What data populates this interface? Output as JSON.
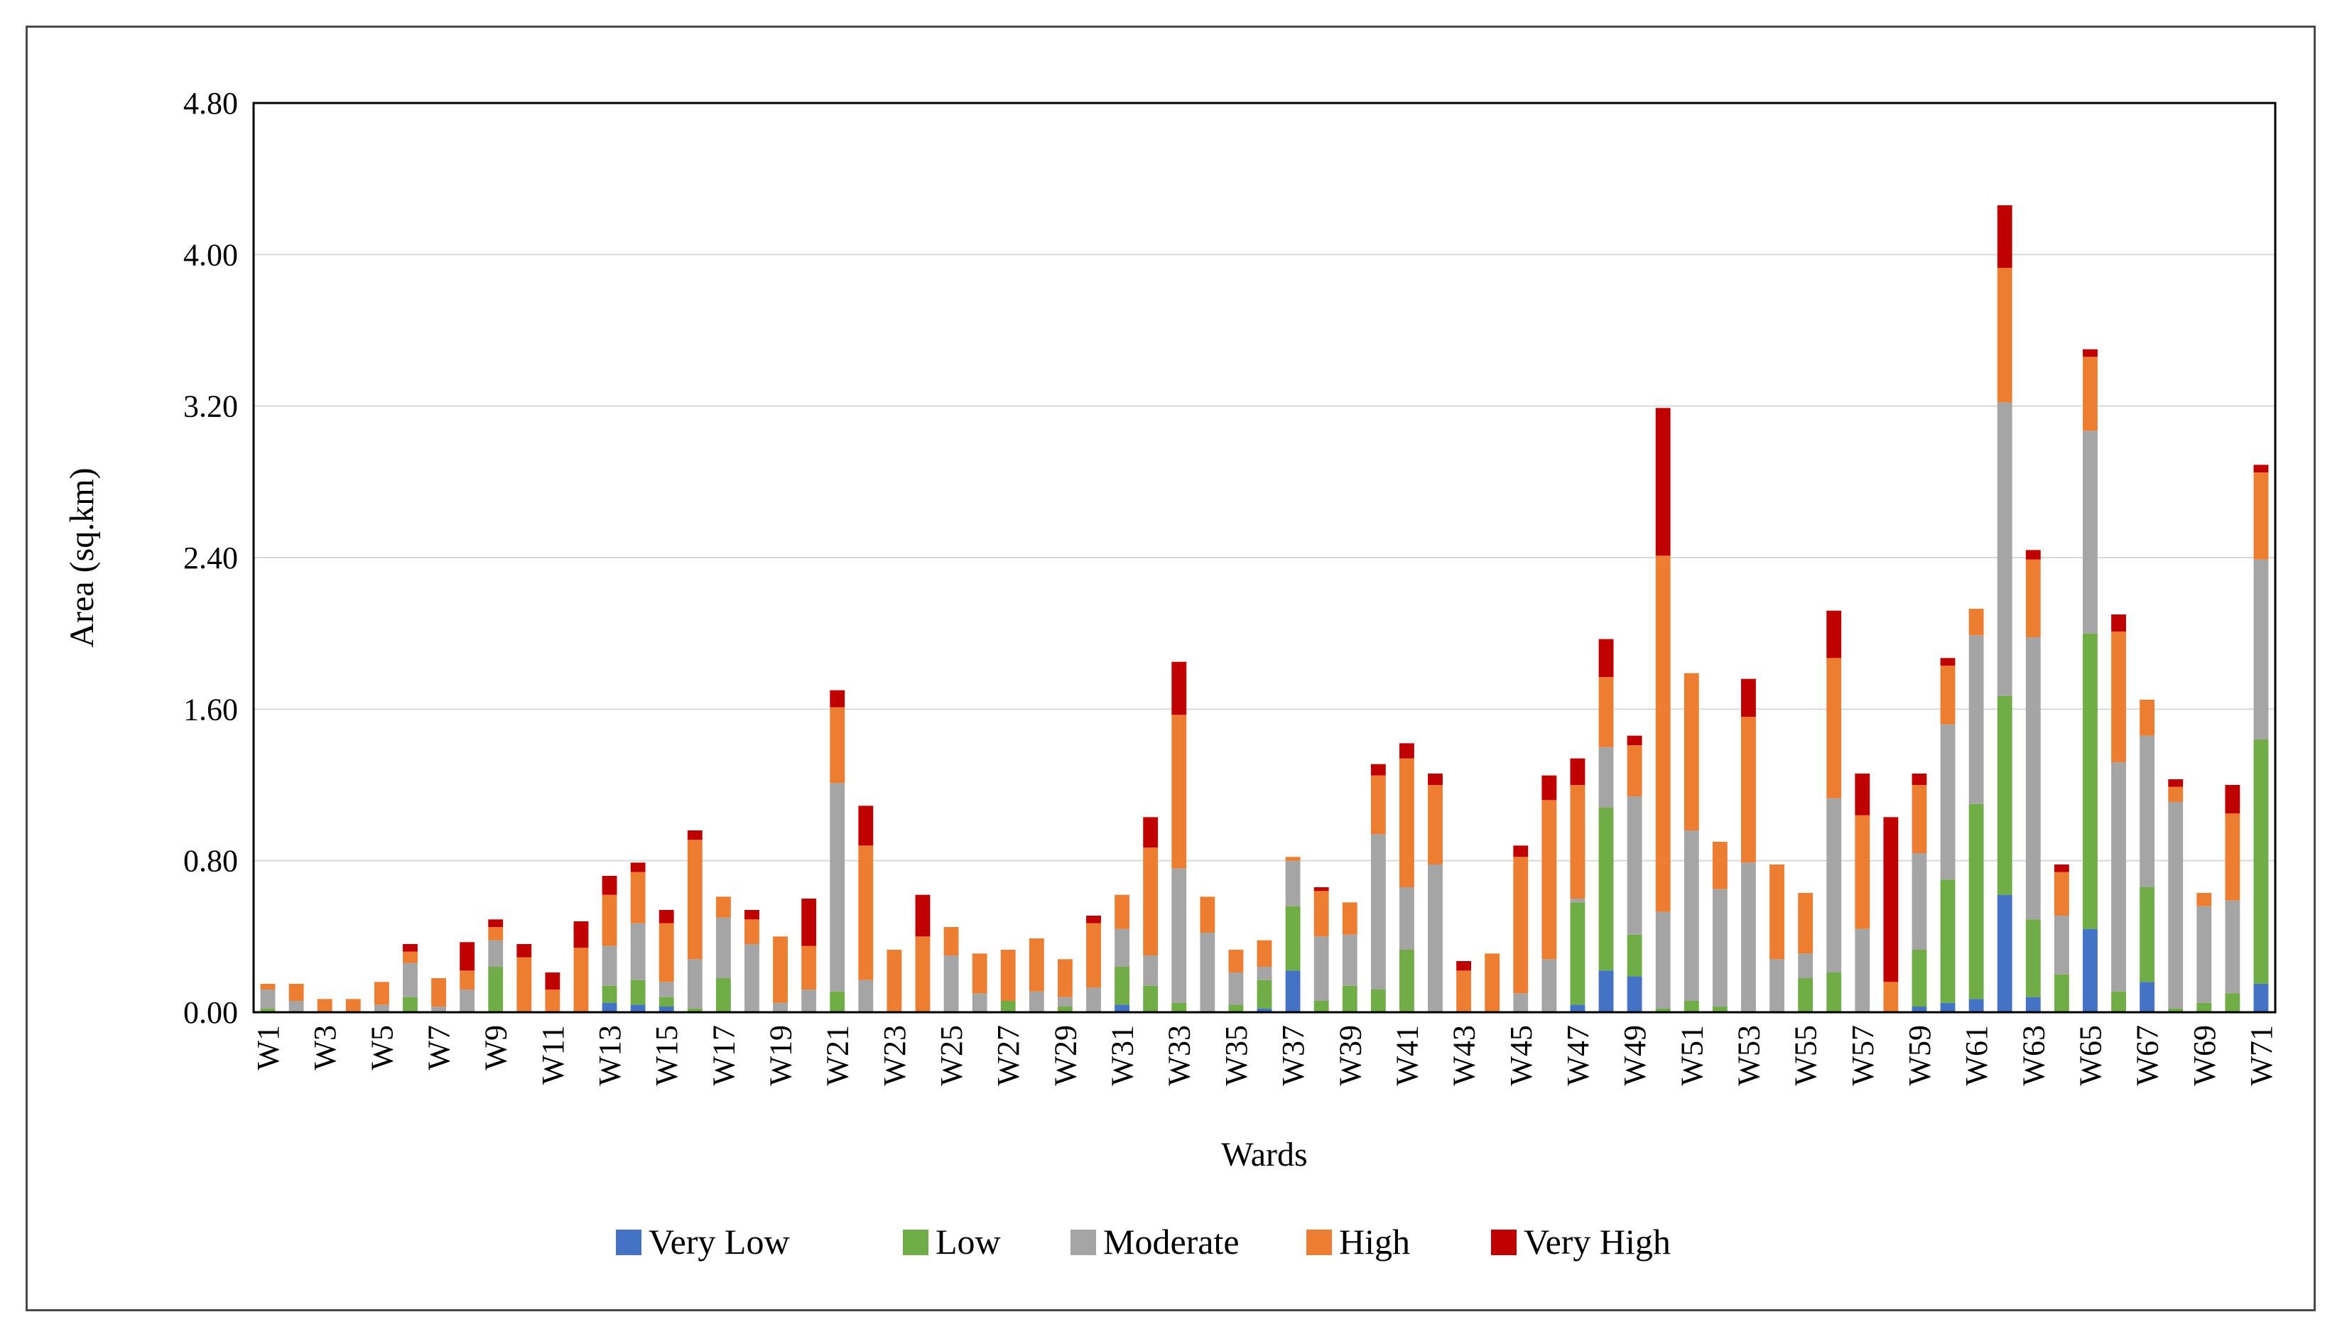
{
  "chart_data": {
    "type": "bar",
    "stacked": true,
    "title": "",
    "xlabel": "Wards",
    "ylabel": "Area (sq.km)",
    "ylim": [
      0,
      4.8
    ],
    "yticks": [
      "0.00",
      "0.80",
      "1.60",
      "2.40",
      "3.20",
      "4.00",
      "4.80"
    ],
    "grid": true,
    "legend_position": "bottom",
    "categories": [
      "W1",
      "W2",
      "W3",
      "W4",
      "W5",
      "W6",
      "W7",
      "W8",
      "W9",
      "W10",
      "W11",
      "W12",
      "W13",
      "W14",
      "W15",
      "W16",
      "W17",
      "W18",
      "W19",
      "W20",
      "W21",
      "W22",
      "W23",
      "W24",
      "W25",
      "W26",
      "W27",
      "W28",
      "W29",
      "W30",
      "W31",
      "W32",
      "W33",
      "W34",
      "W35",
      "W36",
      "W37",
      "W38",
      "W39",
      "W40",
      "W41",
      "W42",
      "W43",
      "W44",
      "W45",
      "W46",
      "W47",
      "W48",
      "W49",
      "W50",
      "W51",
      "W52",
      "W53",
      "W54",
      "W55",
      "W56",
      "W57",
      "W58",
      "W59",
      "W60",
      "W61",
      "W62",
      "W63",
      "W64",
      "W65",
      "W66",
      "W67",
      "W68",
      "W69",
      "W70",
      "W71"
    ],
    "xtick_labels_shown": [
      "W1",
      "W3",
      "W5",
      "W7",
      "W9",
      "W11",
      "W13",
      "W15",
      "W17",
      "W19",
      "W21",
      "W23",
      "W25",
      "W27",
      "W29",
      "W31",
      "W33",
      "W35",
      "W37",
      "W39",
      "W41",
      "W43",
      "W45",
      "W47",
      "W49",
      "W51",
      "W53",
      "W55",
      "W57",
      "W59",
      "W61",
      "W63",
      "W65",
      "W67",
      "W69",
      "W71"
    ],
    "series": [
      {
        "name": "Very Low",
        "color": "#4472c4",
        "values": [
          0,
          0,
          0,
          0,
          0,
          0,
          0,
          0,
          0,
          0,
          0,
          0,
          0.05,
          0.04,
          0.03,
          0,
          0,
          0,
          0,
          0,
          0,
          0,
          0,
          0,
          0,
          0,
          0,
          0,
          0,
          0,
          0.04,
          0,
          0,
          0,
          0,
          0.02,
          0.22,
          0,
          0,
          0,
          0,
          0,
          0,
          0,
          0,
          0,
          0.04,
          0.22,
          0.19,
          0,
          0,
          0,
          0,
          0,
          0,
          0,
          0,
          0,
          0.03,
          0.05,
          0.07,
          0.62,
          0.08,
          0,
          0.44,
          0,
          0.16,
          0,
          0,
          0,
          0.15
        ]
      },
      {
        "name": "Low",
        "color": "#70ad47",
        "values": [
          0.02,
          0,
          0,
          0,
          0,
          0.08,
          0,
          0,
          0.24,
          0,
          0,
          0,
          0.09,
          0.13,
          0.05,
          0.02,
          0.18,
          0,
          0,
          0,
          0.11,
          0,
          0,
          0,
          0,
          0,
          0.06,
          0,
          0.03,
          0,
          0.2,
          0.14,
          0.05,
          0,
          0.04,
          0.15,
          0.34,
          0.06,
          0.14,
          0.12,
          0.33,
          0,
          0,
          0,
          0,
          0,
          0.54,
          0.86,
          0.22,
          0.02,
          0.06,
          0.03,
          0,
          0,
          0.18,
          0.21,
          0,
          0,
          0.3,
          0.65,
          1.03,
          1.05,
          0.41,
          0.2,
          1.56,
          0.11,
          0.5,
          0.02,
          0.05,
          0.1,
          1.29
        ]
      },
      {
        "name": "Moderate",
        "color": "#a5a5a5",
        "values": [
          0.1,
          0.06,
          0,
          0,
          0.04,
          0.18,
          0.03,
          0.12,
          0.14,
          0,
          0,
          0,
          0.21,
          0.3,
          0.08,
          0.26,
          0.32,
          0.36,
          0.05,
          0.12,
          1.1,
          0.17,
          0,
          0,
          0.3,
          0.1,
          0,
          0.11,
          0.05,
          0.13,
          0.2,
          0.16,
          0.71,
          0.42,
          0.17,
          0.07,
          0.24,
          0.34,
          0.27,
          0.82,
          0.33,
          0.78,
          0,
          0,
          0.1,
          0.28,
          0.02,
          0.32,
          0.73,
          0.51,
          0.9,
          0.62,
          0.79,
          0.28,
          0.13,
          0.92,
          0.44,
          0,
          0.51,
          0.82,
          0.89,
          1.55,
          1.49,
          0.31,
          1.07,
          1.21,
          0.8,
          1.09,
          0.51,
          0.49,
          0.95
        ]
      },
      {
        "name": "High",
        "color": "#ed7d31",
        "values": [
          0.03,
          0.09,
          0.07,
          0.07,
          0.12,
          0.06,
          0.15,
          0.1,
          0.07,
          0.29,
          0.12,
          0.34,
          0.27,
          0.27,
          0.31,
          0.63,
          0.11,
          0.13,
          0.35,
          0.23,
          0.4,
          0.71,
          0.33,
          0.4,
          0.15,
          0.21,
          0.27,
          0.28,
          0.2,
          0.34,
          0.18,
          0.57,
          0.81,
          0.19,
          0.12,
          0.14,
          0.02,
          0.24,
          0.17,
          0.31,
          0.68,
          0.42,
          0.22,
          0.31,
          0.72,
          0.84,
          0.6,
          0.37,
          0.27,
          1.88,
          0.83,
          0.25,
          0.77,
          0.5,
          0.32,
          0.74,
          0.6,
          0.16,
          0.36,
          0.31,
          0.14,
          0.71,
          0.41,
          0.23,
          0.39,
          0.69,
          0.19,
          0.08,
          0.07,
          0.46,
          0.46
        ]
      },
      {
        "name": "Very High",
        "color": "#c00000",
        "values": [
          0,
          0,
          0,
          0,
          0,
          0.04,
          0,
          0.15,
          0.04,
          0.07,
          0.09,
          0.14,
          0.1,
          0.05,
          0.07,
          0.05,
          0,
          0.05,
          0,
          0.25,
          0.09,
          0.21,
          0,
          0.22,
          0,
          0,
          0,
          0,
          0,
          0.04,
          0,
          0.16,
          0.28,
          0,
          0,
          0,
          0,
          0.02,
          0,
          0.06,
          0.08,
          0.06,
          0.05,
          0,
          0.06,
          0.13,
          0.14,
          0.2,
          0.05,
          0.78,
          0,
          0,
          0.2,
          0,
          0,
          0.25,
          0.22,
          0.87,
          0.06,
          0.04,
          0,
          0.33,
          0.05,
          0.04,
          0.04,
          0.09,
          0,
          0.04,
          0,
          0.15,
          0.04
        ]
      }
    ]
  }
}
